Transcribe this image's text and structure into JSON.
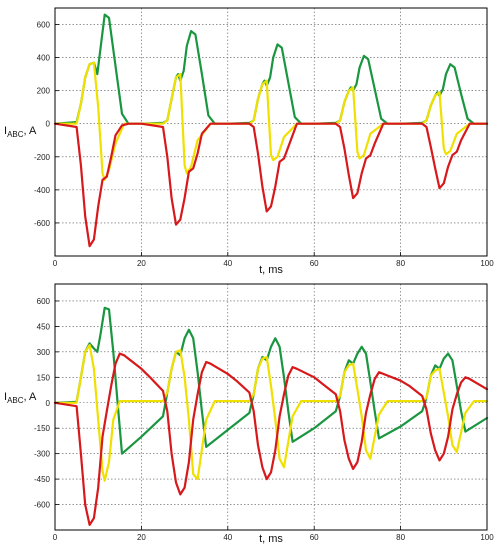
{
  "chart_data": [
    {
      "type": "line",
      "xlabel": "t, ms",
      "ylabel": "I",
      "ylabel_sub": "ABC",
      "ylabel_unit": ", A",
      "xlim": [
        0,
        100
      ],
      "ylim": [
        -800,
        700
      ],
      "xticks": [
        0,
        20,
        40,
        60,
        80,
        100
      ],
      "yticks": [
        -600,
        -400,
        -200,
        0,
        200,
        400,
        600
      ],
      "grid": true,
      "series": [
        {
          "color": "#1a9641",
          "x": [
            0,
            5,
            6,
            7,
            8,
            9,
            9.8,
            10.5,
            11.5,
            12.5,
            14,
            15.5,
            17,
            20,
            25,
            26,
            27,
            28,
            28.5,
            29,
            29.8,
            30.5,
            31.5,
            32.5,
            34,
            35.5,
            37,
            40,
            45,
            46,
            47,
            48,
            48.5,
            49,
            49.8,
            50.5,
            51.5,
            52.5,
            54,
            55.5,
            57,
            60,
            65,
            66,
            67,
            68,
            68.5,
            69,
            69.8,
            70.5,
            71.5,
            72.5,
            74,
            75.5,
            77,
            80,
            85,
            86,
            87,
            88,
            88.5,
            89,
            89.8,
            90.5,
            91.5,
            92.5,
            94,
            95.5,
            97,
            100
          ],
          "y": [
            0,
            10,
            120,
            280,
            360,
            370,
            300,
            450,
            660,
            640,
            350,
            60,
            0,
            0,
            5,
            20,
            150,
            280,
            300,
            260,
            320,
            470,
            560,
            540,
            300,
            50,
            0,
            0,
            5,
            20,
            150,
            240,
            260,
            230,
            280,
            400,
            480,
            460,
            250,
            40,
            0,
            0,
            5,
            20,
            130,
            200,
            220,
            200,
            240,
            340,
            410,
            390,
            210,
            30,
            0,
            0,
            5,
            20,
            110,
            170,
            190,
            170,
            210,
            300,
            360,
            340,
            180,
            30,
            0,
            0
          ]
        },
        {
          "color": "#f0e000",
          "x": [
            0,
            5,
            6,
            7,
            8,
            9,
            10,
            11,
            11.5,
            12.5,
            14,
            16,
            20,
            25,
            26,
            27,
            28,
            29,
            30,
            30.5,
            31.5,
            33,
            36,
            40,
            45,
            46,
            47,
            48,
            49,
            50,
            50.5,
            51.5,
            53,
            56,
            60,
            65,
            66,
            67,
            68,
            69,
            70,
            70.5,
            71.5,
            73,
            76,
            80,
            85,
            86,
            87,
            88,
            89,
            90,
            90.5,
            91.5,
            93,
            96,
            100
          ],
          "y": [
            0,
            0,
            120,
            280,
            360,
            370,
            100,
            -300,
            -340,
            -280,
            -120,
            0,
            0,
            0,
            20,
            150,
            280,
            300,
            -250,
            -300,
            -260,
            -100,
            0,
            0,
            0,
            20,
            150,
            240,
            260,
            -190,
            -220,
            -200,
            -80,
            0,
            0,
            0,
            20,
            130,
            200,
            220,
            -170,
            -210,
            -190,
            -60,
            0,
            0,
            0,
            20,
            110,
            170,
            190,
            -150,
            -185,
            -165,
            -60,
            0,
            0
          ]
        },
        {
          "color": "#d7191c",
          "x": [
            0,
            5,
            6,
            7,
            8,
            9,
            10,
            11,
            12,
            13,
            14,
            15.5,
            17,
            20,
            25,
            26,
            27,
            28,
            29,
            30,
            31,
            32,
            33,
            34,
            36,
            40,
            45,
            46,
            47,
            48,
            49,
            50,
            51,
            52,
            53,
            54,
            56,
            60,
            65,
            66,
            67,
            68,
            69,
            70,
            71,
            72,
            73,
            74,
            76,
            80,
            85,
            86,
            87,
            88,
            89,
            90,
            91,
            92,
            93,
            94,
            96,
            100
          ],
          "y": [
            0,
            -20,
            -250,
            -560,
            -740,
            -700,
            -500,
            -340,
            -320,
            -200,
            -70,
            -10,
            0,
            0,
            -20,
            -200,
            -450,
            -610,
            -580,
            -450,
            -290,
            -270,
            -180,
            -60,
            0,
            0,
            0,
            -20,
            -180,
            -380,
            -530,
            -500,
            -380,
            -230,
            -210,
            -140,
            0,
            0,
            0,
            -20,
            -150,
            -310,
            -450,
            -420,
            -300,
            -210,
            -190,
            -120,
            0,
            0,
            0,
            -20,
            -140,
            -270,
            -390,
            -360,
            -260,
            -190,
            -170,
            -100,
            0,
            0
          ]
        }
      ]
    },
    {
      "type": "line",
      "xlabel": "t, ms",
      "ylabel": "I",
      "ylabel_sub": "ABC",
      "ylabel_unit": ", A",
      "xlim": [
        0,
        100
      ],
      "ylim": [
        -750,
        700
      ],
      "xticks": [
        0,
        20,
        40,
        60,
        80,
        100
      ],
      "yticks": [
        -600,
        -450,
        -300,
        -150,
        0,
        150,
        300,
        450,
        600
      ],
      "grid": true,
      "series": [
        {
          "color": "#1a9641",
          "x": [
            0,
            5,
            6,
            7,
            8,
            9,
            9.8,
            10.5,
            11.5,
            12.5,
            13.5,
            14.5,
            15.5,
            20,
            25,
            26,
            27,
            28,
            29,
            30,
            31,
            32,
            33,
            34,
            35,
            40,
            45,
            46,
            47,
            48,
            49,
            50,
            51,
            52,
            53,
            54,
            55,
            60,
            65,
            66,
            67,
            68,
            69,
            70,
            71,
            72,
            73,
            74,
            75,
            80,
            85,
            86,
            87,
            88,
            89,
            90,
            91,
            92,
            93,
            94,
            95,
            100
          ],
          "y": [
            0,
            5,
            150,
            300,
            350,
            320,
            300,
            400,
            560,
            550,
            300,
            0,
            -300,
            -200,
            -80,
            60,
            200,
            300,
            280,
            380,
            430,
            380,
            180,
            -50,
            -260,
            -160,
            -60,
            50,
            200,
            270,
            250,
            330,
            380,
            330,
            150,
            -50,
            -230,
            -150,
            -50,
            40,
            180,
            250,
            230,
            290,
            330,
            290,
            120,
            -50,
            -210,
            -140,
            -50,
            30,
            160,
            220,
            200,
            260,
            290,
            250,
            100,
            -50,
            -170,
            -90
          ]
        },
        {
          "color": "#f0e000",
          "x": [
            0,
            5,
            6,
            7,
            8,
            9,
            10,
            11,
            11.5,
            12.5,
            13.5,
            15,
            17,
            20,
            25,
            26,
            27,
            28,
            29,
            30,
            31,
            32,
            33,
            35,
            37,
            40,
            45,
            46,
            47,
            48,
            49,
            50,
            51,
            52,
            53,
            55,
            57,
            60,
            65,
            66,
            67,
            68,
            69,
            70,
            71,
            72,
            73,
            75,
            77,
            80,
            85,
            86,
            87,
            88,
            89,
            90,
            91,
            92,
            93,
            95,
            97,
            100
          ],
          "y": [
            0,
            0,
            150,
            300,
            340,
            200,
            -100,
            -400,
            -460,
            -350,
            -100,
            10,
            10,
            10,
            10,
            60,
            200,
            300,
            310,
            150,
            -100,
            -420,
            -450,
            -100,
            10,
            10,
            10,
            50,
            200,
            260,
            270,
            100,
            -100,
            -330,
            -380,
            -80,
            10,
            10,
            10,
            40,
            180,
            220,
            230,
            80,
            -80,
            -280,
            -330,
            -70,
            10,
            10,
            10,
            30,
            160,
            190,
            200,
            60,
            -80,
            -250,
            -290,
            -60,
            10,
            10
          ]
        },
        {
          "color": "#d7191c",
          "x": [
            0,
            5,
            6,
            7,
            8,
            9,
            10,
            11,
            12,
            13,
            14,
            15,
            16,
            20,
            22,
            25,
            26,
            27,
            28,
            29,
            30,
            31,
            32,
            33,
            34,
            35,
            36,
            40,
            42,
            45,
            46,
            47,
            48,
            49,
            50,
            51,
            52,
            53,
            54,
            55,
            56,
            60,
            62,
            65,
            66,
            67,
            68,
            69,
            70,
            71,
            72,
            73,
            74,
            75,
            76,
            80,
            82,
            85,
            86,
            87,
            88,
            89,
            90,
            91,
            92,
            93,
            94,
            95,
            96,
            100
          ],
          "y": [
            0,
            -20,
            -300,
            -600,
            -720,
            -680,
            -500,
            -200,
            -50,
            100,
            230,
            290,
            280,
            200,
            150,
            70,
            -50,
            -300,
            -470,
            -540,
            -500,
            -350,
            -100,
            50,
            180,
            240,
            230,
            170,
            130,
            60,
            -50,
            -250,
            -380,
            -450,
            -410,
            -280,
            -80,
            50,
            160,
            210,
            200,
            150,
            110,
            50,
            -50,
            -220,
            -330,
            -390,
            -350,
            -230,
            -60,
            50,
            140,
            180,
            170,
            130,
            100,
            40,
            -40,
            -180,
            -280,
            -340,
            -300,
            -200,
            -40,
            50,
            120,
            150,
            140,
            80
          ]
        }
      ]
    }
  ]
}
